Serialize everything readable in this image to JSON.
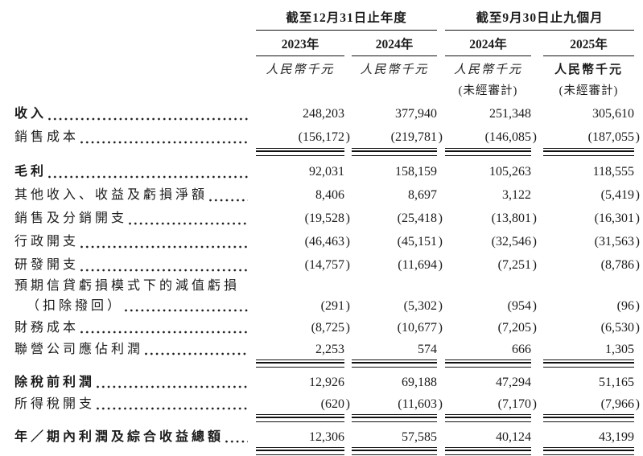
{
  "colors": {
    "text": "#1b1b1b",
    "rule": "#111111",
    "background": "#ffffff"
  },
  "table": {
    "groups": [
      {
        "title": "截至12月31日止年度"
      },
      {
        "title": "截至9月30日止九個月"
      }
    ],
    "columns": [
      {
        "year": "2023年",
        "unit": "人民幣千元",
        "note": ""
      },
      {
        "year": "2024年",
        "unit": "人民幣千元",
        "note": ""
      },
      {
        "year": "2024年",
        "unit": "人民幣千元",
        "note": "(未經審計)"
      },
      {
        "year": "2025年",
        "unit": "人民幣千元",
        "note": "(未經審計)"
      }
    ],
    "rows": [
      {
        "label": "收入",
        "bold": true,
        "values": [
          "248,203",
          "377,940",
          "251,348",
          "305,610"
        ]
      },
      {
        "label": "銷售成本",
        "rule": true,
        "values": [
          "(156,172)",
          "(219,781)",
          "(146,085)",
          "(187,055)"
        ]
      },
      {
        "label": "毛利",
        "bold": true,
        "gap": true,
        "values": [
          "92,031",
          "158,159",
          "105,263",
          "118,555"
        ]
      },
      {
        "label": "其他收入、收益及虧損淨額",
        "values": [
          "8,406",
          "8,697",
          "3,122",
          "(5,419)"
        ]
      },
      {
        "label": "銷售及分銷開支",
        "values": [
          "(19,528)",
          "(25,418)",
          "(13,801)",
          "(16,301)"
        ]
      },
      {
        "label": "行政開支",
        "values": [
          "(46,463)",
          "(45,151)",
          "(32,546)",
          "(31,563)"
        ]
      },
      {
        "label": "研發開支",
        "values": [
          "(14,757)",
          "(11,694)",
          "(7,251)",
          "(8,786)"
        ]
      },
      {
        "label": "預期信貸虧損模式下的減值虧損",
        "label_only": true
      },
      {
        "label": "（扣除撥回）",
        "indent": true,
        "values": [
          "(291)",
          "(5,302)",
          "(954)",
          "(96)"
        ]
      },
      {
        "label": "財務成本",
        "values": [
          "(8,725)",
          "(10,677)",
          "(7,205)",
          "(6,530)"
        ]
      },
      {
        "label": "聯營公司應佔利潤",
        "rule": true,
        "values": [
          "2,253",
          "574",
          "666",
          "1,305"
        ]
      },
      {
        "label": "除稅前利潤",
        "bold": true,
        "gap": true,
        "values": [
          "12,926",
          "69,188",
          "47,294",
          "51,165"
        ]
      },
      {
        "label": "所得稅開支",
        "rule": true,
        "values": [
          "(620)",
          "(11,603)",
          "(7,170)",
          "(7,966)"
        ]
      },
      {
        "label": "年／期內利潤及綜合收益總額",
        "bold": true,
        "gap": true,
        "rule": true,
        "values": [
          "12,306",
          "57,585",
          "40,124",
          "43,199"
        ]
      }
    ]
  }
}
